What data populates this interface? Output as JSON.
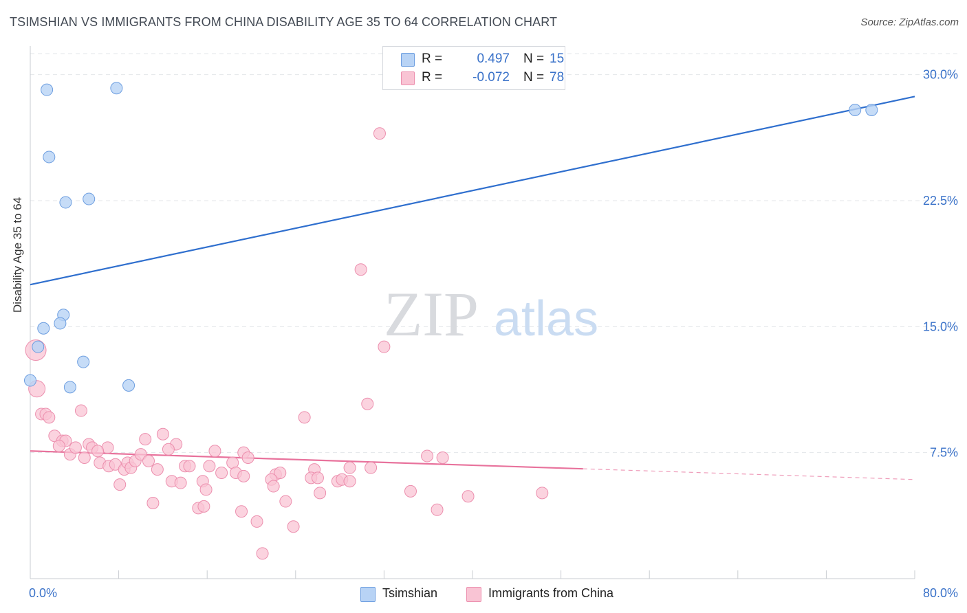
{
  "title": "TSIMSHIAN VS IMMIGRANTS FROM CHINA DISABILITY AGE 35 TO 64 CORRELATION CHART",
  "source": "Source: ZipAtlas.com",
  "watermark": {
    "zip": "ZIP",
    "atlas": "atlas"
  },
  "legend": {
    "rows": [
      {
        "r_label": "R =",
        "r_value": "0.497",
        "n_label": "N =",
        "n_value": "15"
      },
      {
        "r_label": "R =",
        "r_value": "-0.072",
        "n_label": "N =",
        "n_value": "78"
      }
    ]
  },
  "bottom_legend": {
    "series1": "Tsimshian",
    "series2": "Immigrants from China"
  },
  "colors": {
    "series1_fill": "#b8d3f5",
    "series1_stroke": "#6d9ee0",
    "series1_line": "#2f6fce",
    "series2_fill": "#f9c4d4",
    "series2_stroke": "#ec8fae",
    "series2_line": "#e8729c",
    "axis_text": "#3a72c9",
    "grid": "#e3e6ea"
  },
  "chart_data": {
    "type": "scatter",
    "title": "TSIMSHIAN VS IMMIGRANTS FROM CHINA DISABILITY AGE 35 TO 64 CORRELATION CHART",
    "xlabel": "",
    "ylabel": "Disability Age 35 to 64",
    "xlim": [
      0,
      80
    ],
    "ylim": [
      0,
      31.5
    ],
    "x_tick_labels": [
      "0.0%",
      "80.0%"
    ],
    "y_ticks": [
      7.5,
      15.0,
      22.5,
      30.0
    ],
    "y_tick_labels": [
      "7.5%",
      "15.0%",
      "22.5%",
      "30.0%"
    ],
    "series": [
      {
        "name": "Tsimshian",
        "r": 0.497,
        "n": 15,
        "points": [
          {
            "x": 1.5,
            "y": 29.1
          },
          {
            "x": 7.8,
            "y": 29.2
          },
          {
            "x": 1.7,
            "y": 25.1
          },
          {
            "x": 3.2,
            "y": 22.4
          },
          {
            "x": 5.3,
            "y": 22.6
          },
          {
            "x": 3.0,
            "y": 15.7
          },
          {
            "x": 2.7,
            "y": 15.2
          },
          {
            "x": 1.2,
            "y": 14.9
          },
          {
            "x": 0.7,
            "y": 13.8
          },
          {
            "x": 4.8,
            "y": 12.9
          },
          {
            "x": 0.0,
            "y": 11.8
          },
          {
            "x": 3.6,
            "y": 11.4
          },
          {
            "x": 8.9,
            "y": 11.5
          },
          {
            "x": 74.6,
            "y": 27.9
          },
          {
            "x": 76.1,
            "y": 27.9
          }
        ],
        "trend": {
          "x": [
            0,
            80
          ],
          "y": [
            17.5,
            28.7
          ],
          "dashed_from": null
        }
      },
      {
        "name": "Immigrants from China",
        "r": -0.072,
        "n": 78,
        "points": [
          {
            "x": 31.6,
            "y": 26.5
          },
          {
            "x": 29.9,
            "y": 18.4
          },
          {
            "x": 32.0,
            "y": 13.8
          },
          {
            "x": 0.5,
            "y": 13.6
          },
          {
            "x": 0.6,
            "y": 11.3
          },
          {
            "x": 30.5,
            "y": 10.4
          },
          {
            "x": 24.8,
            "y": 9.6
          },
          {
            "x": 1.0,
            "y": 9.8
          },
          {
            "x": 1.4,
            "y": 9.8
          },
          {
            "x": 1.7,
            "y": 9.6
          },
          {
            "x": 4.6,
            "y": 10.0
          },
          {
            "x": 2.2,
            "y": 8.5
          },
          {
            "x": 2.9,
            "y": 8.2
          },
          {
            "x": 3.2,
            "y": 8.2
          },
          {
            "x": 5.3,
            "y": 8.0
          },
          {
            "x": 7.0,
            "y": 7.8
          },
          {
            "x": 12.0,
            "y": 8.6
          },
          {
            "x": 13.2,
            "y": 8.0
          },
          {
            "x": 10.4,
            "y": 8.3
          },
          {
            "x": 2.6,
            "y": 7.9
          },
          {
            "x": 3.6,
            "y": 7.4
          },
          {
            "x": 4.1,
            "y": 7.8
          },
          {
            "x": 5.6,
            "y": 7.8
          },
          {
            "x": 6.1,
            "y": 7.6
          },
          {
            "x": 12.5,
            "y": 7.7
          },
          {
            "x": 16.7,
            "y": 7.6
          },
          {
            "x": 19.3,
            "y": 7.5
          },
          {
            "x": 19.7,
            "y": 7.2
          },
          {
            "x": 4.9,
            "y": 7.2
          },
          {
            "x": 6.3,
            "y": 6.9
          },
          {
            "x": 7.1,
            "y": 6.7
          },
          {
            "x": 7.7,
            "y": 6.8
          },
          {
            "x": 8.5,
            "y": 6.5
          },
          {
            "x": 8.8,
            "y": 6.9
          },
          {
            "x": 9.1,
            "y": 6.6
          },
          {
            "x": 9.5,
            "y": 7.0
          },
          {
            "x": 10.0,
            "y": 7.4
          },
          {
            "x": 10.7,
            "y": 7.0
          },
          {
            "x": 11.5,
            "y": 6.5
          },
          {
            "x": 14.0,
            "y": 6.7
          },
          {
            "x": 14.4,
            "y": 6.7
          },
          {
            "x": 16.2,
            "y": 6.7
          },
          {
            "x": 17.3,
            "y": 6.3
          },
          {
            "x": 18.3,
            "y": 6.9
          },
          {
            "x": 18.6,
            "y": 6.3
          },
          {
            "x": 19.3,
            "y": 6.1
          },
          {
            "x": 22.2,
            "y": 6.2
          },
          {
            "x": 22.6,
            "y": 6.3
          },
          {
            "x": 21.8,
            "y": 5.9
          },
          {
            "x": 25.7,
            "y": 6.5
          },
          {
            "x": 25.4,
            "y": 6.0
          },
          {
            "x": 26.0,
            "y": 6.0
          },
          {
            "x": 27.8,
            "y": 5.8
          },
          {
            "x": 28.2,
            "y": 5.9
          },
          {
            "x": 28.9,
            "y": 5.8
          },
          {
            "x": 28.9,
            "y": 6.6
          },
          {
            "x": 30.8,
            "y": 6.6
          },
          {
            "x": 35.9,
            "y": 7.3
          },
          {
            "x": 37.3,
            "y": 7.2
          },
          {
            "x": 8.1,
            "y": 5.6
          },
          {
            "x": 12.8,
            "y": 5.8
          },
          {
            "x": 13.6,
            "y": 5.7
          },
          {
            "x": 15.6,
            "y": 5.8
          },
          {
            "x": 15.9,
            "y": 5.3
          },
          {
            "x": 22.0,
            "y": 5.5
          },
          {
            "x": 26.2,
            "y": 5.1
          },
          {
            "x": 34.4,
            "y": 5.2
          },
          {
            "x": 39.6,
            "y": 4.9
          },
          {
            "x": 46.3,
            "y": 5.1
          },
          {
            "x": 11.1,
            "y": 4.5
          },
          {
            "x": 15.2,
            "y": 4.2
          },
          {
            "x": 15.7,
            "y": 4.3
          },
          {
            "x": 23.1,
            "y": 4.6
          },
          {
            "x": 19.1,
            "y": 4.0
          },
          {
            "x": 36.8,
            "y": 4.1
          },
          {
            "x": 20.5,
            "y": 3.4
          },
          {
            "x": 23.8,
            "y": 3.1
          },
          {
            "x": 21.0,
            "y": 1.5
          }
        ],
        "trend": {
          "x": [
            0,
            80
          ],
          "y": [
            7.6,
            5.9
          ],
          "dashed_from": 50
        }
      }
    ]
  }
}
